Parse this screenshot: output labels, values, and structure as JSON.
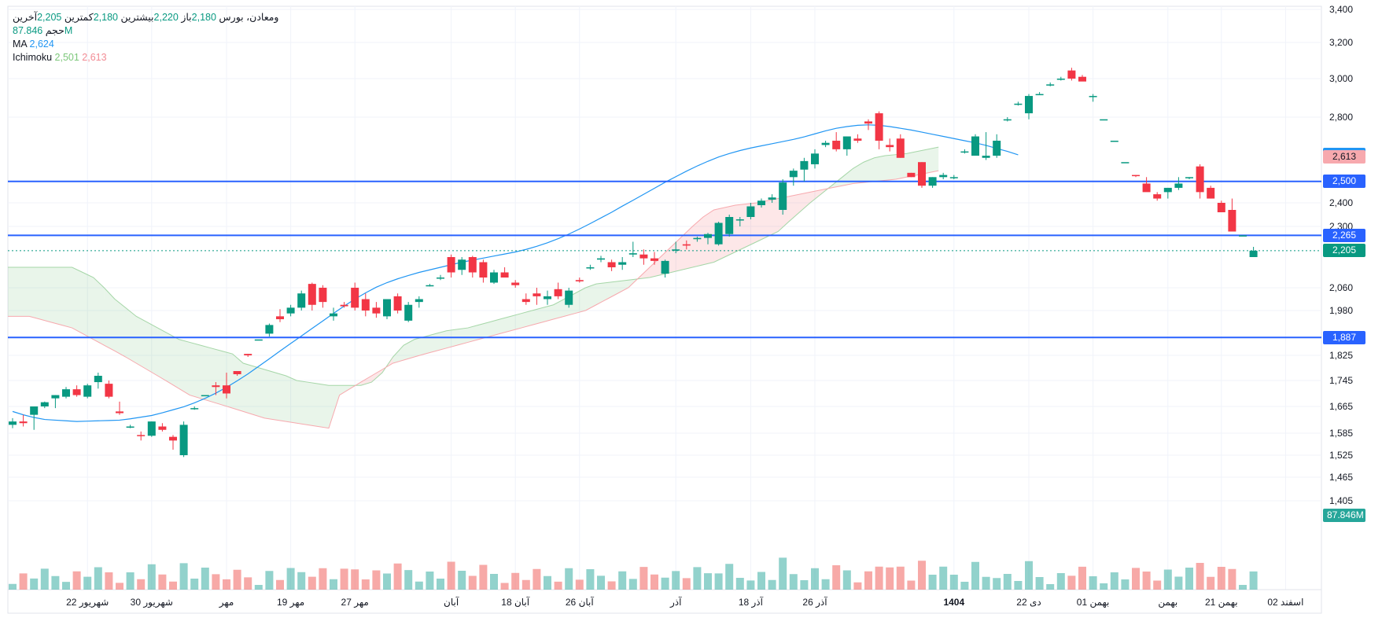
{
  "legend": {
    "symbol": "ومعادن، بورس",
    "open_label": "باز",
    "open": "2,180",
    "high_label": "بیشترین",
    "high": "2,220",
    "low_label": "کمترین",
    "low": "2,180",
    "close_label": "آخرین",
    "close": "2,205",
    "volume_label": "حجم",
    "volume": "87.846M",
    "ma_label": "MA",
    "ma": "2,624",
    "ichimoku_label": "Ichimoku",
    "ichimoku_a": "2,501",
    "ichimoku_b": "2,613"
  },
  "price_tags": [
    {
      "name": "ma-tag",
      "label": "2,624",
      "value": 2624,
      "color": "#2196f3"
    },
    {
      "name": "ichimoku-b-tag",
      "label": "2,613",
      "value": 2613,
      "color": "#f7a9ae"
    },
    {
      "name": "ichimoku-a-tag",
      "label": "2,501",
      "value": 2501,
      "color": "#a5d6a7"
    },
    {
      "name": "level-2500-tag",
      "label": "2,500",
      "value": 2500,
      "color": "#2962ff"
    },
    {
      "name": "level-2265-tag",
      "label": "2,265",
      "value": 2265,
      "color": "#2962ff"
    },
    {
      "name": "last-price-tag",
      "label": "2,205",
      "value": 2205,
      "color": "#089981"
    },
    {
      "name": "level-1887-tag",
      "label": "1,887",
      "value": 1887,
      "color": "#2962ff"
    },
    {
      "name": "volume-tag",
      "label": "87.846M",
      "value": 87.846,
      "color": "#26a69a"
    }
  ],
  "chart_data": {
    "type": "candlestick",
    "title": "ومعادن، بورس",
    "y_axis_ticks": [
      "3,400",
      "3,200",
      "3,000",
      "2,800",
      "2,400",
      "2,300",
      "2,060",
      "1,980",
      "1,825",
      "1,745",
      "1,665",
      "1,585",
      "1,525",
      "1,465",
      "1,405"
    ],
    "y_axis_tick_values": [
      3400,
      3200,
      3000,
      2800,
      2400,
      2300,
      2060,
      1980,
      1825,
      1745,
      1665,
      1585,
      1525,
      1465,
      1405
    ],
    "x_axis_labels": [
      "22 شهریور",
      "30 شهریور",
      "مهر",
      "19 مهر",
      "27 مهر",
      "آبان",
      "18 آبان",
      "26 آبان",
      "آذر",
      "18 آذر",
      "26 آذر",
      "1404",
      "22 دی",
      "01 بهمن",
      "بهمن",
      "21 بهمن",
      "02 اسفند"
    ],
    "x_axis_label_index": [
      7,
      13,
      20,
      26,
      32,
      41,
      47,
      53,
      62,
      69,
      75,
      88,
      95,
      101,
      108,
      113,
      119
    ],
    "horizontal_levels": [
      2500,
      2265,
      1887
    ],
    "last_price": 2205,
    "candles": [
      [
        1610,
        1630,
        1600,
        1620
      ],
      [
        1620,
        1640,
        1605,
        1615
      ],
      [
        1640,
        1665,
        1595,
        1665
      ],
      [
        1665,
        1680,
        1660,
        1678
      ],
      [
        1690,
        1700,
        1660,
        1700
      ],
      [
        1695,
        1725,
        1690,
        1718
      ],
      [
        1718,
        1730,
        1695,
        1700
      ],
      [
        1695,
        1735,
        1690,
        1730
      ],
      [
        1740,
        1770,
        1720,
        1760
      ],
      [
        1735,
        1745,
        1690,
        1695
      ],
      [
        1650,
        1680,
        1640,
        1645
      ],
      [
        1605,
        1610,
        1600,
        1605
      ],
      [
        1580,
        1590,
        1565,
        1578
      ],
      [
        1578,
        1620,
        1575,
        1620
      ],
      [
        1605,
        1615,
        1590,
        1595
      ],
      [
        1575,
        1580,
        1540,
        1565
      ],
      [
        1525,
        1620,
        1520,
        1610
      ],
      [
        1660,
        1665,
        1655,
        1660
      ],
      [
        1700,
        1700,
        1700,
        1700
      ],
      [
        1730,
        1740,
        1700,
        1725
      ],
      [
        1730,
        1770,
        1690,
        1705
      ],
      [
        1775,
        1775,
        1760,
        1765
      ],
      [
        1830,
        1830,
        1820,
        1825
      ],
      [
        1880,
        1880,
        1880,
        1880
      ],
      [
        1900,
        1935,
        1890,
        1930
      ],
      [
        1960,
        1985,
        1940,
        1950
      ],
      [
        1970,
        2000,
        1960,
        1990
      ],
      [
        1990,
        2050,
        1980,
        2040
      ],
      [
        2075,
        2080,
        1980,
        2000
      ],
      [
        2060,
        2070,
        1990,
        2010
      ],
      [
        1960,
        1990,
        1945,
        1970
      ],
      [
        2000,
        2010,
        1990,
        1995
      ],
      [
        2060,
        2080,
        1980,
        1990
      ],
      [
        2020,
        2040,
        1960,
        1980
      ],
      [
        1990,
        2010,
        1955,
        1970
      ],
      [
        1960,
        2020,
        1950,
        2020
      ],
      [
        2030,
        2040,
        1970,
        1980
      ],
      [
        1945,
        2010,
        1940,
        2000
      ],
      [
        2010,
        2030,
        1990,
        2020
      ],
      [
        2070,
        2075,
        2065,
        2070
      ],
      [
        2100,
        2110,
        2090,
        2100
      ],
      [
        2180,
        2190,
        2100,
        2120
      ],
      [
        2130,
        2180,
        2110,
        2170
      ],
      [
        2180,
        2185,
        2100,
        2120
      ],
      [
        2160,
        2170,
        2080,
        2100
      ],
      [
        2080,
        2130,
        2075,
        2120
      ],
      [
        2120,
        2140,
        2100,
        2100
      ],
      [
        2080,
        2090,
        2060,
        2070
      ],
      [
        2020,
        2040,
        2000,
        2010
      ],
      [
        2040,
        2060,
        2000,
        2030
      ],
      [
        2020,
        2050,
        2000,
        2030
      ],
      [
        2055,
        2080,
        2020,
        2030
      ],
      [
        2000,
        2060,
        1990,
        2050
      ],
      [
        2090,
        2100,
        2080,
        2085
      ],
      [
        2140,
        2150,
        2130,
        2140
      ],
      [
        2170,
        2185,
        2160,
        2175
      ],
      [
        2160,
        2170,
        2125,
        2140
      ],
      [
        2150,
        2180,
        2130,
        2160
      ],
      [
        2190,
        2240,
        2180,
        2195
      ],
      [
        2190,
        2210,
        2150,
        2175
      ],
      [
        2175,
        2200,
        2150,
        2165
      ],
      [
        2115,
        2170,
        2100,
        2165
      ],
      [
        2205,
        2240,
        2195,
        2210
      ],
      [
        2230,
        2245,
        2210,
        2225
      ],
      [
        2250,
        2260,
        2240,
        2255
      ],
      [
        2255,
        2275,
        2230,
        2270
      ],
      [
        2230,
        2320,
        2225,
        2315
      ],
      [
        2270,
        2350,
        2260,
        2340
      ],
      [
        2330,
        2340,
        2300,
        2330
      ],
      [
        2340,
        2400,
        2330,
        2385
      ],
      [
        2390,
        2420,
        2380,
        2410
      ],
      [
        2415,
        2440,
        2400,
        2425
      ],
      [
        2370,
        2510,
        2350,
        2495
      ],
      [
        2520,
        2560,
        2480,
        2550
      ],
      [
        2555,
        2610,
        2500,
        2595
      ],
      [
        2580,
        2650,
        2560,
        2630
      ],
      [
        2670,
        2690,
        2660,
        2680
      ],
      [
        2690,
        2730,
        2640,
        2650
      ],
      [
        2650,
        2710,
        2620,
        2710
      ],
      [
        2700,
        2720,
        2680,
        2690
      ],
      [
        2780,
        2790,
        2740,
        2770
      ],
      [
        2820,
        2830,
        2650,
        2690
      ],
      [
        2670,
        2700,
        2640,
        2660
      ],
      [
        2700,
        2720,
        2610,
        2610
      ],
      [
        2540,
        2540,
        2520,
        2520
      ],
      [
        2590,
        2590,
        2470,
        2480
      ],
      [
        2480,
        2520,
        2470,
        2520
      ],
      [
        2520,
        2540,
        2510,
        2530
      ],
      [
        2520,
        2530,
        2510,
        2520
      ],
      [
        2640,
        2650,
        2630,
        2640
      ],
      [
        2620,
        2720,
        2620,
        2710
      ],
      [
        2610,
        2730,
        2600,
        2620
      ],
      [
        2620,
        2720,
        2610,
        2690
      ],
      [
        2790,
        2800,
        2780,
        2790
      ],
      [
        2870,
        2880,
        2860,
        2870
      ],
      [
        2820,
        2920,
        2790,
        2910
      ],
      [
        2920,
        2930,
        2920,
        2920
      ],
      [
        2970,
        2980,
        2960,
        2970
      ],
      [
        3000,
        3010,
        2990,
        3000
      ],
      [
        3045,
        3060,
        2990,
        3000
      ],
      [
        3010,
        3020,
        2990,
        2985
      ],
      [
        2910,
        2920,
        2880,
        2910
      ],
      [
        2790,
        2790,
        2790,
        2790
      ],
      [
        2690,
        2690,
        2690,
        2690
      ],
      [
        2590,
        2590,
        2590,
        2590
      ],
      [
        2530,
        2530,
        2520,
        2525
      ],
      [
        2490,
        2520,
        2460,
        2450
      ],
      [
        2440,
        2450,
        2410,
        2420
      ],
      [
        2450,
        2470,
        2420,
        2470
      ],
      [
        2470,
        2520,
        2460,
        2490
      ],
      [
        2520,
        2520,
        2510,
        2520
      ],
      [
        2570,
        2580,
        2420,
        2450
      ],
      [
        2470,
        2480,
        2420,
        2420
      ],
      [
        2400,
        2410,
        2370,
        2360
      ],
      [
        2370,
        2420,
        2280,
        2280
      ],
      [
        2265,
        2265,
        2265,
        2265
      ],
      [
        2180,
        2220,
        2180,
        2205
      ]
    ],
    "volume_unit": "M",
    "volume_last": 87.846,
    "ma_line": [
      1650,
      1640,
      1632,
      1626,
      1624,
      1622,
      1620,
      1621,
      1622,
      1623,
      1624,
      1628,
      1633,
      1638,
      1646,
      1655,
      1664,
      1676,
      1690,
      1706,
      1724,
      1744,
      1766,
      1790,
      1814,
      1840,
      1866,
      1892,
      1918,
      1944,
      1970,
      1996,
      2020,
      2042,
      2062,
      2080,
      2095,
      2108,
      2120,
      2130,
      2140,
      2150,
      2160,
      2168,
      2176,
      2184,
      2192,
      2200,
      2210,
      2222,
      2236,
      2252,
      2270,
      2290,
      2312,
      2336,
      2360,
      2386,
      2412,
      2440,
      2468,
      2496,
      2522,
      2548,
      2572,
      2594,
      2614,
      2630,
      2644,
      2656,
      2666,
      2676,
      2686,
      2696,
      2708,
      2722,
      2736,
      2748,
      2756,
      2762,
      2764,
      2762,
      2756,
      2748,
      2740,
      2730,
      2720,
      2710,
      2700,
      2690,
      2680,
      2668,
      2654,
      2640,
      2624
    ],
    "ichimoku_a": [
      2140,
      2140,
      2140,
      2140,
      2140,
      2140,
      2140,
      2120,
      2100,
      2060,
      2020,
      1990,
      1960,
      1940,
      1920,
      1900,
      1880,
      1870,
      1860,
      1850,
      1840,
      1830,
      1800,
      1790,
      1780,
      1770,
      1760,
      1745,
      1740,
      1735,
      1730,
      1730,
      1730,
      1730,
      1740,
      1770,
      1820,
      1860,
      1880,
      1890,
      1900,
      1910,
      1915,
      1920,
      1930,
      1940,
      1950,
      1960,
      1970,
      1980,
      1990,
      2000,
      2020,
      2040,
      2060,
      2075,
      2080,
      2085,
      2090,
      2095,
      2100,
      2110,
      2120,
      2130,
      2140,
      2150,
      2160,
      2180,
      2200,
      2220,
      2240,
      2260,
      2280,
      2320,
      2360,
      2400,
      2440,
      2480,
      2520,
      2560,
      2590,
      2610,
      2620,
      2625,
      2630,
      2640,
      2650,
      2660
    ],
    "ichimoku_b": [
      1960,
      1960,
      1960,
      1950,
      1940,
      1930,
      1920,
      1900,
      1880,
      1860,
      1840,
      1820,
      1800,
      1780,
      1760,
      1740,
      1720,
      1700,
      1690,
      1680,
      1670,
      1660,
      1650,
      1640,
      1630,
      1625,
      1620,
      1615,
      1610,
      1605,
      1600,
      1700,
      1720,
      1740,
      1760,
      1780,
      1800,
      1810,
      1820,
      1830,
      1840,
      1850,
      1860,
      1870,
      1880,
      1890,
      1900,
      1910,
      1920,
      1930,
      1940,
      1950,
      1960,
      1970,
      1980,
      2000,
      2020,
      2040,
      2060,
      2100,
      2140,
      2180,
      2220,
      2260,
      2300,
      2340,
      2370,
      2380,
      2390,
      2395,
      2400,
      2410,
      2420,
      2430,
      2440,
      2450,
      2460,
      2470,
      2480,
      2490,
      2495,
      2500,
      2505,
      2510,
      2520,
      2530,
      2540,
      2550
    ]
  }
}
